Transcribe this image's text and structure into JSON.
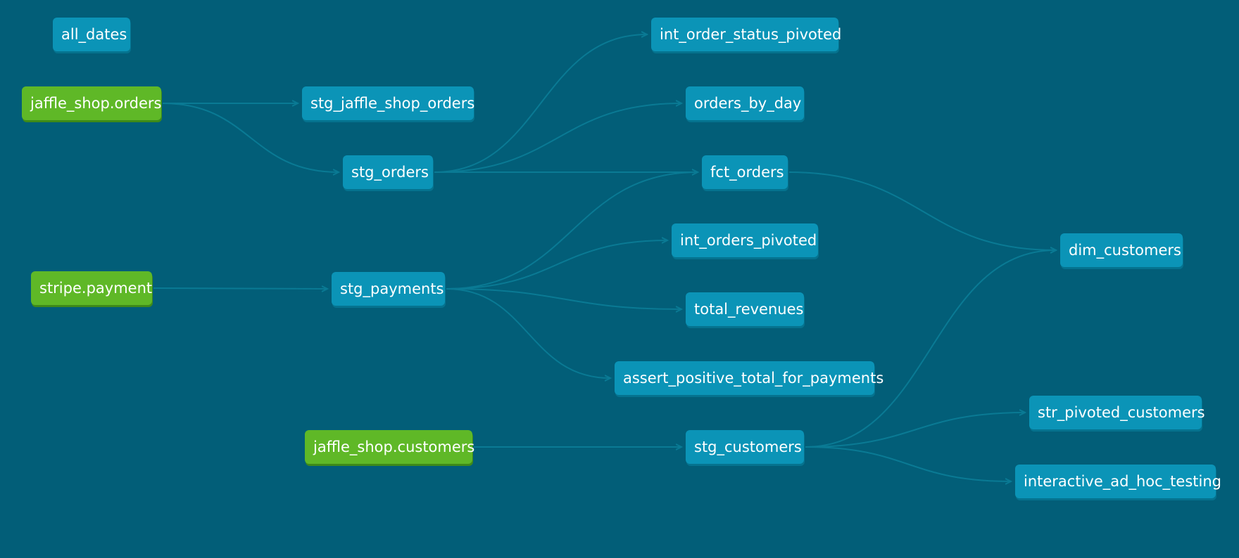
{
  "colors": {
    "background": "#025e78",
    "model_node": "#0b94b7",
    "source_node": "#5fb827",
    "edge": "#0a7a94",
    "text": "#ffffff"
  },
  "nodes": {
    "all_dates": {
      "label": "all_dates",
      "kind": "model"
    },
    "jaffle_shop_orders": {
      "label": "jaffle_shop.orders",
      "kind": "source"
    },
    "stg_jaffle_shop_orders": {
      "label": "stg_jaffle_shop_orders",
      "kind": "model"
    },
    "stg_orders": {
      "label": "stg_orders",
      "kind": "model"
    },
    "stripe_payment": {
      "label": "stripe.payment",
      "kind": "source"
    },
    "stg_payments": {
      "label": "stg_payments",
      "kind": "model"
    },
    "jaffle_shop_customers": {
      "label": "jaffle_shop.customers",
      "kind": "source"
    },
    "int_order_status_pivoted": {
      "label": "int_order_status_pivoted",
      "kind": "model"
    },
    "orders_by_day": {
      "label": "orders_by_day",
      "kind": "model"
    },
    "fct_orders": {
      "label": "fct_orders",
      "kind": "model"
    },
    "int_orders_pivoted": {
      "label": "int_orders_pivoted",
      "kind": "model"
    },
    "total_revenues": {
      "label": "total_revenues",
      "kind": "model"
    },
    "assert_positive_total_for_payments": {
      "label": "assert_positive_total_for_payments",
      "kind": "model"
    },
    "stg_customers": {
      "label": "stg_customers",
      "kind": "model"
    },
    "dim_customers": {
      "label": "dim_customers",
      "kind": "model"
    },
    "str_pivoted_customers": {
      "label": "str_pivoted_customers",
      "kind": "model"
    },
    "interactive_ad_hoc_testing": {
      "label": "interactive_ad_hoc_testing",
      "kind": "model"
    }
  },
  "edges": [
    {
      "from": "jaffle_shop_orders",
      "to": "stg_jaffle_shop_orders"
    },
    {
      "from": "jaffle_shop_orders",
      "to": "stg_orders"
    },
    {
      "from": "stg_orders",
      "to": "int_order_status_pivoted"
    },
    {
      "from": "stg_orders",
      "to": "orders_by_day"
    },
    {
      "from": "stg_orders",
      "to": "fct_orders"
    },
    {
      "from": "stripe_payment",
      "to": "stg_payments"
    },
    {
      "from": "stg_payments",
      "to": "fct_orders"
    },
    {
      "from": "stg_payments",
      "to": "int_orders_pivoted"
    },
    {
      "from": "stg_payments",
      "to": "total_revenues"
    },
    {
      "from": "stg_payments",
      "to": "assert_positive_total_for_payments"
    },
    {
      "from": "fct_orders",
      "to": "dim_customers"
    },
    {
      "from": "jaffle_shop_customers",
      "to": "stg_customers"
    },
    {
      "from": "stg_customers",
      "to": "dim_customers"
    },
    {
      "from": "stg_customers",
      "to": "str_pivoted_customers"
    },
    {
      "from": "stg_customers",
      "to": "interactive_ad_hoc_testing"
    }
  ]
}
